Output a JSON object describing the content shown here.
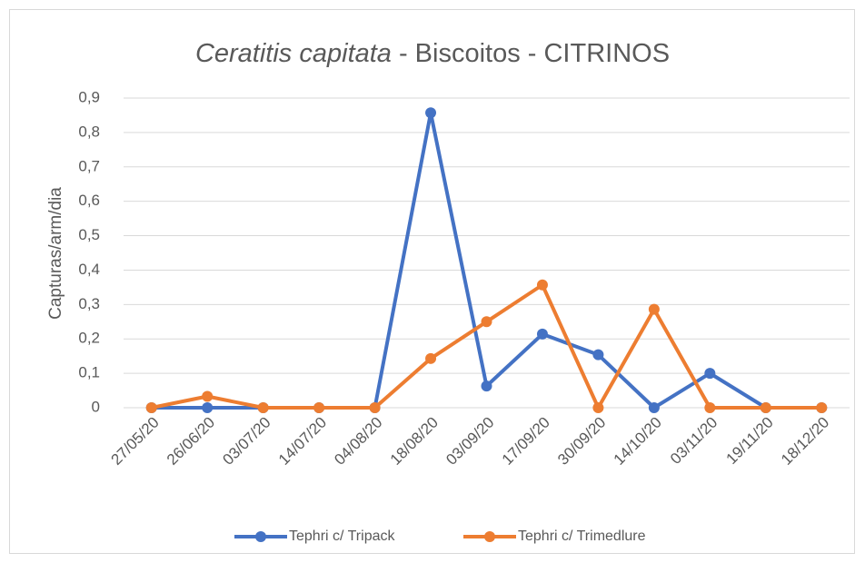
{
  "chart_data": {
    "type": "line",
    "title": [
      "Ceratitis capitata",
      "- Biscoitos - CITRINOS"
    ],
    "y_label": "Capturas/arm/dia",
    "categories": [
      "27/05/20",
      "26/06/20",
      "03/07/20",
      "14/07/20",
      "04/08/20",
      "18/08/20",
      "03/09/20",
      "17/09/20",
      "30/09/20",
      "14/10/20",
      "03/11/20",
      "19/11/20",
      "18/12/20"
    ],
    "series": [
      {
        "name": "Tephri c/ Tripack",
        "color": "#4472c4",
        "values": [
          0,
          0,
          0,
          0,
          0,
          0.857,
          0.063,
          0.214,
          0.154,
          0,
          0.1,
          0,
          0
        ]
      },
      {
        "name": "Tephri c/ Trimedlure",
        "color": "#ed7d31",
        "values": [
          0,
          0.033,
          0,
          0,
          0,
          0.143,
          0.25,
          0.357,
          0,
          0.286,
          0,
          0,
          0
        ]
      }
    ],
    "ylim": [
      0,
      0.9
    ],
    "yticks": [
      0,
      {
        "value": 0.1,
        "label": "0,1"
      },
      {
        "value": 0.2,
        "label": "0,2"
      },
      {
        "value": 0.3,
        "label": "0,3"
      },
      {
        "value": 0.4,
        "label": "0,4"
      },
      {
        "value": 0.5,
        "label": "0,5"
      },
      {
        "value": 0.6,
        "label": "0,6"
      },
      {
        "value": 0.7,
        "label": "0,7"
      },
      {
        "value": 0.8,
        "label": "0,8"
      },
      {
        "value": 0.9,
        "label": "0,9"
      }
    ],
    "grid": true,
    "legend": "bottom"
  }
}
